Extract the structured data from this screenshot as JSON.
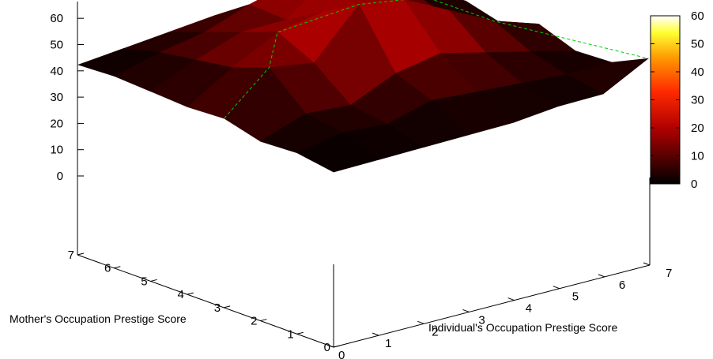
{
  "chart_data": {
    "type": "surface3d",
    "title": "",
    "xlabel": "Individual's Occupation Prestige Score",
    "ylabel": "Mother's Occupation Prestige Score",
    "zlabel": "",
    "x": [
      0,
      1,
      2,
      3,
      4,
      5,
      6,
      7
    ],
    "y": [
      0,
      1,
      2,
      3,
      4,
      5,
      6,
      7
    ],
    "xlim": [
      0,
      7
    ],
    "ylim": [
      0,
      7
    ],
    "zlim": [
      -24,
      60
    ],
    "z_ticks": [
      "0",
      "10",
      "20",
      "30",
      "40",
      "50",
      "60"
    ],
    "x_ticks": [
      "0",
      "1",
      "2",
      "3",
      "4",
      "5",
      "6",
      "7"
    ],
    "y_ticks": [
      "0",
      "1",
      "2",
      "3",
      "4",
      "5",
      "6",
      "7"
    ],
    "colorbar": {
      "range": [
        0,
        60
      ],
      "ticks": [
        "0",
        "10",
        "20",
        "30",
        "40",
        "50",
        "60"
      ],
      "palette": "hot"
    },
    "z": [
      [
        0,
        0,
        0,
        0,
        0,
        1,
        1,
        7
      ],
      [
        1,
        3,
        2,
        5,
        4,
        3,
        2,
        2
      ],
      [
        0,
        4,
        3,
        8,
        10,
        7,
        4,
        1
      ],
      [
        2,
        12,
        10,
        22,
        20,
        14,
        8,
        4
      ],
      [
        1,
        8,
        14,
        16,
        12,
        10,
        3,
        0
      ],
      [
        1,
        6,
        10,
        10,
        18,
        14,
        6,
        2
      ],
      [
        1,
        4,
        6,
        10,
        13,
        8,
        4,
        1
      ],
      [
        0,
        1,
        2,
        3,
        2,
        1,
        0,
        0
      ]
    ],
    "top_contour_color": "#00cc00"
  }
}
